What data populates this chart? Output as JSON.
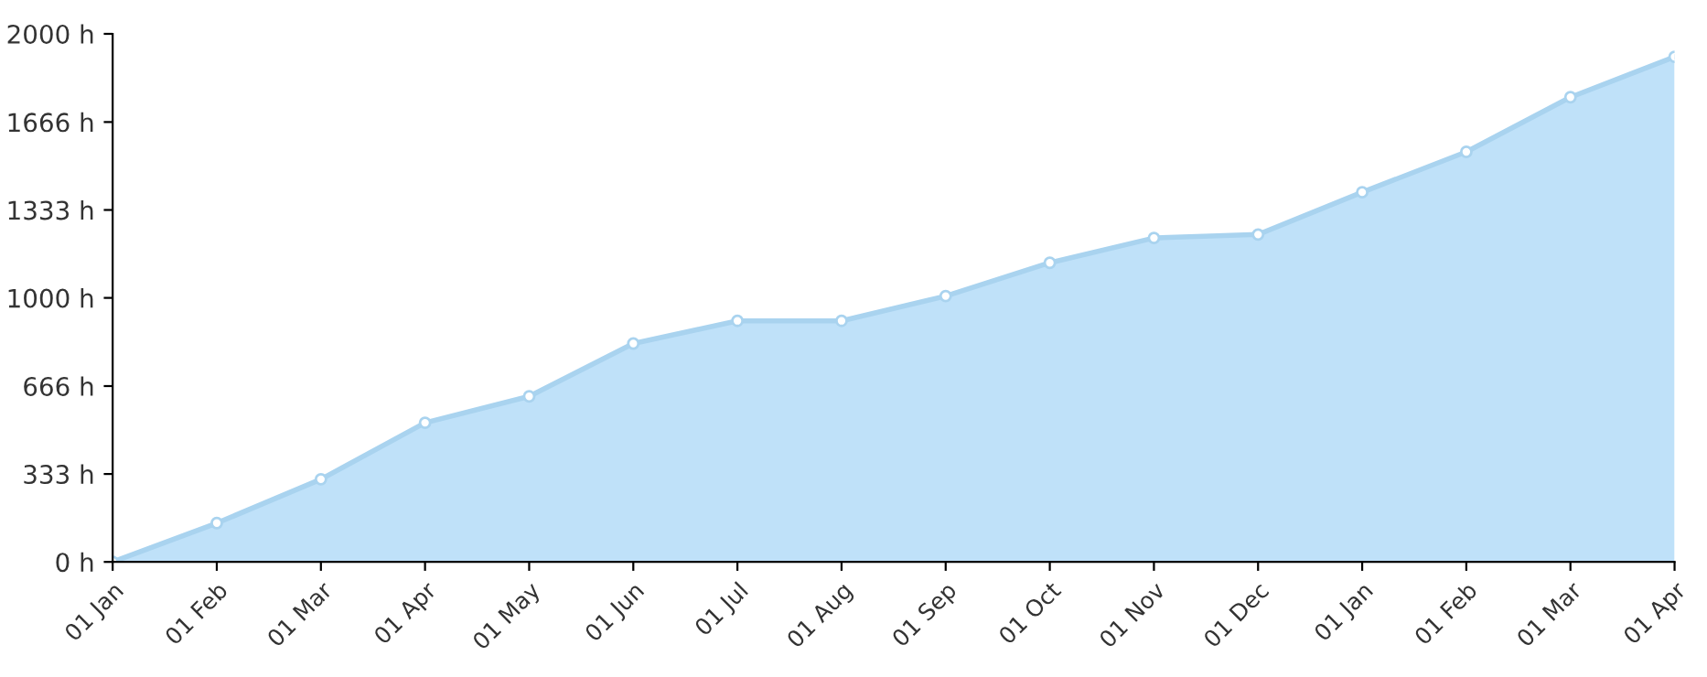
{
  "chart_data": {
    "type": "area",
    "categories": [
      "01 Jan",
      "01 Feb",
      "01 Mar",
      "01 Apr",
      "01 May",
      "01 Jun",
      "01 Jul",
      "01 Aug",
      "01 Sep",
      "01 Oct",
      "01 Nov",
      "01 Dec",
      "01 Jan",
      "01 Feb",
      "01 Mar",
      "01 Apr"
    ],
    "series": [
      {
        "color": "#bfe1f9",
        "values": [
          0,
          147,
          313,
          527,
          627,
          827,
          913,
          913,
          1007,
          1133,
          1227,
          1240,
          1400,
          1553,
          1760,
          1913
        ]
      }
    ],
    "ylim": [
      0,
      2000
    ],
    "yticks": [
      {
        "value": 0,
        "label": "0 h"
      },
      {
        "value": 333,
        "label": "333 h"
      },
      {
        "value": 666,
        "label": "666 h"
      },
      {
        "value": 1000,
        "label": "1000 h"
      },
      {
        "value": 1333,
        "label": "1333 h"
      },
      {
        "value": 1666,
        "label": "1666 h"
      },
      {
        "value": 2000,
        "label": "2000 h"
      }
    ],
    "grid": false,
    "marker": "circle",
    "line_style": "solid"
  }
}
